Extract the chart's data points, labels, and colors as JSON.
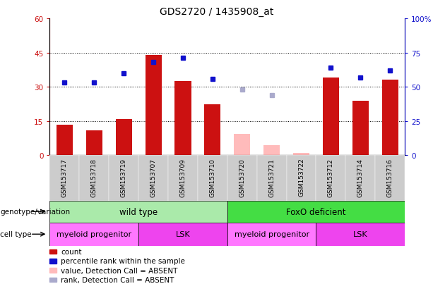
{
  "title": "GDS2720 / 1435908_at",
  "samples": [
    "GSM153717",
    "GSM153718",
    "GSM153719",
    "GSM153707",
    "GSM153709",
    "GSM153710",
    "GSM153720",
    "GSM153721",
    "GSM153722",
    "GSM153712",
    "GSM153714",
    "GSM153716"
  ],
  "bar_values": [
    13.5,
    11.0,
    16.0,
    44.0,
    32.5,
    22.5,
    null,
    null,
    null,
    34.0,
    24.0,
    33.0
  ],
  "bar_absent_values": [
    null,
    null,
    null,
    null,
    null,
    null,
    9.5,
    4.5,
    1.0,
    null,
    null,
    null
  ],
  "rank_values": [
    53.0,
    53.0,
    60.0,
    68.0,
    71.0,
    56.0,
    null,
    null,
    null,
    64.0,
    57.0,
    62.0
  ],
  "rank_absent_values": [
    null,
    null,
    null,
    null,
    null,
    null,
    48.0,
    44.0,
    null,
    null,
    null,
    null
  ],
  "ylim_left": [
    0,
    60
  ],
  "ylim_right": [
    0,
    100
  ],
  "yticks_left": [
    0,
    15,
    30,
    45,
    60
  ],
  "yticks_right": [
    0,
    25,
    50,
    75,
    100
  ],
  "ytick_labels_left": [
    "0",
    "15",
    "30",
    "45",
    "60"
  ],
  "ytick_labels_right": [
    "0",
    "25",
    "50",
    "75",
    "100%"
  ],
  "bar_color": "#cc1111",
  "bar_absent_color": "#ffbbbb",
  "rank_color": "#1111cc",
  "rank_absent_color": "#aaaacc",
  "genotype_groups": [
    {
      "label": "wild type",
      "start": 0,
      "end": 6,
      "color": "#aaeaaa"
    },
    {
      "label": "FoxO deficient",
      "start": 6,
      "end": 12,
      "color": "#44dd44"
    }
  ],
  "cell_groups": [
    {
      "label": "myeloid progenitor",
      "start": 0,
      "end": 3,
      "color": "#ff77ff"
    },
    {
      "label": "LSK",
      "start": 3,
      "end": 6,
      "color": "#ee44ee"
    },
    {
      "label": "myeloid progenitor",
      "start": 6,
      "end": 9,
      "color": "#ff77ff"
    },
    {
      "label": "LSK",
      "start": 9,
      "end": 12,
      "color": "#ee44ee"
    }
  ],
  "legend_items": [
    {
      "label": "count",
      "color": "#cc1111"
    },
    {
      "label": "percentile rank within the sample",
      "color": "#1111cc"
    },
    {
      "label": "value, Detection Call = ABSENT",
      "color": "#ffbbbb"
    },
    {
      "label": "rank, Detection Call = ABSENT",
      "color": "#aaaacc"
    }
  ]
}
